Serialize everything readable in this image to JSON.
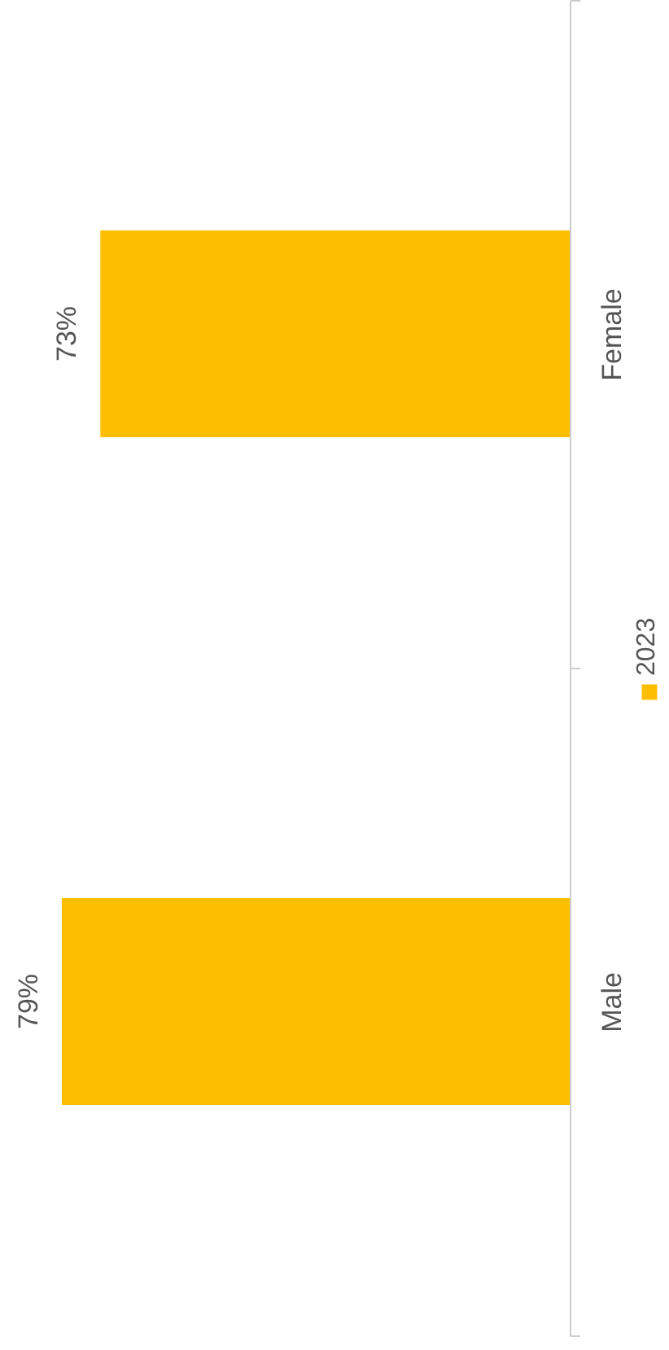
{
  "chart_data": {
    "type": "bar",
    "orientation": "horizontal",
    "categories": [
      "Female",
      "Male"
    ],
    "series": [
      {
        "name": "2023",
        "color": "#fdbd00",
        "values": [
          73,
          79
        ],
        "value_labels": [
          "73%",
          "79%"
        ]
      }
    ],
    "legend": "right"
  }
}
